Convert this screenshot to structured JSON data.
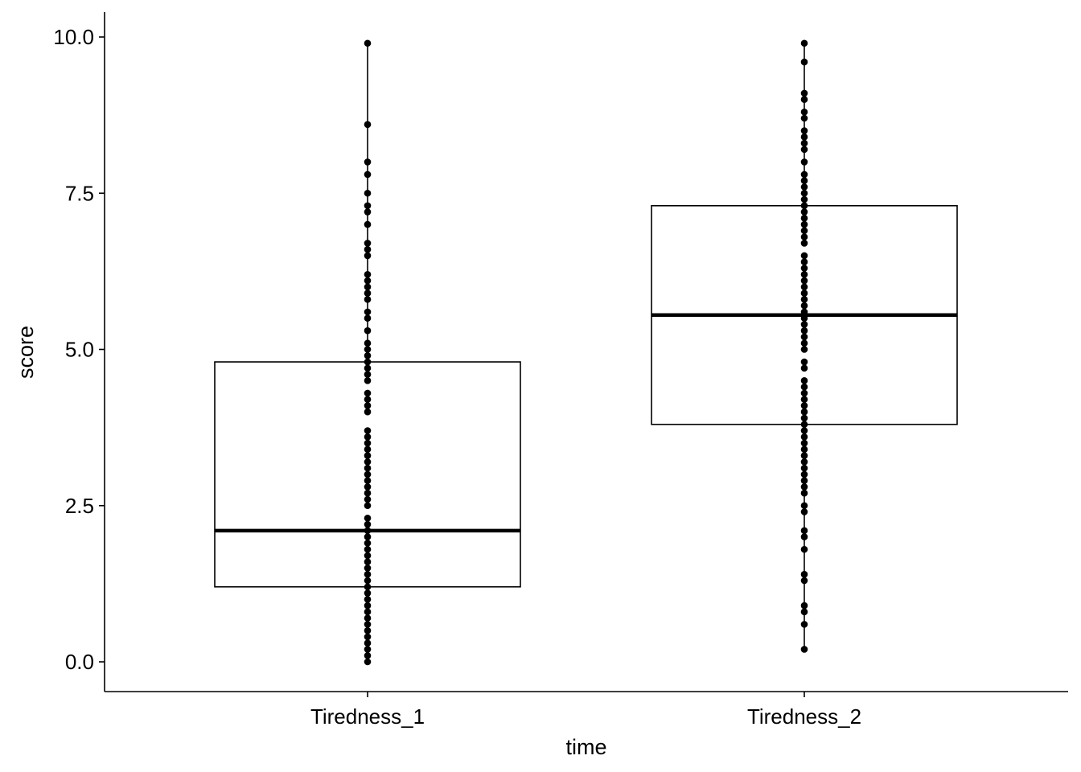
{
  "chart_data": {
    "type": "box",
    "xlabel": "time",
    "ylabel": "score",
    "ylim": [
      -0.45,
      10.4
    ],
    "yticks": [
      0.0,
      2.5,
      5.0,
      7.5,
      10.0
    ],
    "ytick_labels": [
      "0.0",
      "2.5",
      "5.0",
      "7.5",
      "10.0"
    ],
    "categories": [
      "Tiredness_1",
      "Tiredness_2"
    ],
    "grid": false,
    "legend": "none",
    "colors": {
      "ink": "#000000",
      "background": "#ffffff"
    },
    "boxes": [
      {
        "category": "Tiredness_1",
        "q1": 1.2,
        "median": 2.1,
        "q3": 4.8,
        "whisker_low": 0.0,
        "whisker_high": 9.9
      },
      {
        "category": "Tiredness_2",
        "q1": 3.8,
        "median": 5.55,
        "q3": 7.3,
        "whisker_low": 0.2,
        "whisker_high": 9.9
      }
    ],
    "points": [
      {
        "category": "Tiredness_1",
        "values": [
          0.0,
          0.1,
          0.2,
          0.3,
          0.4,
          0.5,
          0.6,
          0.7,
          0.8,
          0.9,
          1.0,
          1.1,
          1.2,
          1.3,
          1.4,
          1.5,
          1.6,
          1.7,
          1.8,
          1.9,
          2.0,
          2.1,
          2.2,
          2.3,
          2.5,
          2.6,
          2.7,
          2.8,
          2.9,
          3.0,
          3.1,
          3.2,
          3.3,
          3.4,
          3.5,
          3.6,
          3.7,
          4.0,
          4.1,
          4.2,
          4.3,
          4.5,
          4.6,
          4.7,
          4.8,
          4.9,
          5.0,
          5.1,
          5.3,
          5.5,
          5.6,
          5.8,
          5.9,
          6.0,
          6.1,
          6.2,
          6.5,
          6.6,
          6.7,
          7.0,
          7.2,
          7.3,
          7.5,
          7.8,
          8.0,
          8.6,
          9.9
        ]
      },
      {
        "category": "Tiredness_2",
        "values": [
          0.2,
          0.6,
          0.8,
          0.9,
          1.3,
          1.4,
          1.8,
          2.0,
          2.1,
          2.4,
          2.5,
          2.7,
          2.8,
          2.9,
          3.0,
          3.1,
          3.2,
          3.3,
          3.4,
          3.5,
          3.6,
          3.7,
          3.8,
          3.9,
          4.0,
          4.1,
          4.2,
          4.3,
          4.4,
          4.5,
          4.7,
          4.8,
          5.0,
          5.1,
          5.2,
          5.3,
          5.4,
          5.5,
          5.6,
          5.7,
          5.8,
          5.9,
          6.0,
          6.1,
          6.2,
          6.3,
          6.4,
          6.5,
          6.7,
          6.8,
          6.9,
          7.0,
          7.1,
          7.2,
          7.3,
          7.4,
          7.5,
          7.6,
          7.7,
          7.8,
          8.0,
          8.2,
          8.3,
          8.4,
          8.5,
          8.7,
          8.8,
          9.0,
          9.1,
          9.6,
          9.9
        ]
      }
    ]
  }
}
